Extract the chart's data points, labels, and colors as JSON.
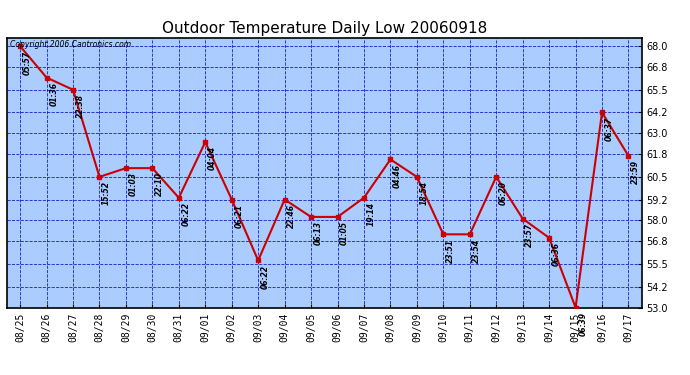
{
  "title": "Outdoor Temperature Daily Low 20060918",
  "copyright_text": "Copyright 2006 Cantronics.com",
  "x_labels": [
    "08/25",
    "08/26",
    "08/27",
    "08/28",
    "08/29",
    "08/30",
    "08/31",
    "09/01",
    "09/02",
    "09/03",
    "09/04",
    "09/05",
    "09/06",
    "09/07",
    "09/08",
    "09/09",
    "09/10",
    "09/11",
    "09/12",
    "09/13",
    "09/14",
    "09/15",
    "09/16",
    "09/17"
  ],
  "y_values": [
    68.0,
    66.2,
    65.5,
    60.5,
    61.0,
    61.0,
    59.3,
    62.5,
    59.2,
    55.7,
    59.2,
    58.2,
    58.2,
    59.3,
    61.5,
    60.5,
    57.2,
    57.2,
    60.5,
    58.1,
    57.0,
    53.0,
    64.2,
    61.7
  ],
  "time_labels": [
    "05:57",
    "01:36",
    "22:38",
    "15:52",
    "01:03",
    "22:10",
    "06:22",
    "04:04",
    "06:21",
    "06:22",
    "22:46",
    "06:13",
    "01:05",
    "19:14",
    "04:46",
    "18:54",
    "23:51",
    "23:54",
    "06:20",
    "23:57",
    "06:36",
    "06:39",
    "06:37",
    "23:59"
  ],
  "ylim_min": 53.0,
  "ylim_max": 68.5,
  "ytick_vals": [
    53.0,
    54.2,
    55.5,
    56.8,
    58.0,
    59.2,
    60.5,
    61.8,
    63.0,
    64.2,
    65.5,
    66.8,
    68.0
  ],
  "ytick_labels": [
    "53.0",
    "54.2",
    "55.5",
    "56.8",
    "58.0",
    "59.2",
    "60.5",
    "61.8",
    "63.0",
    "64.2",
    "65.5",
    "66.8",
    "68.0"
  ],
  "line_color": "#cc0000",
  "plot_bg_color": "#aaccff",
  "outer_bg_color": "#ffffff",
  "grid_color": "#0000bb",
  "text_color": "#000000",
  "title_fontsize": 11,
  "label_fontsize": 7,
  "ytick_fontsize": 7,
  "time_label_fontsize": 5.5
}
